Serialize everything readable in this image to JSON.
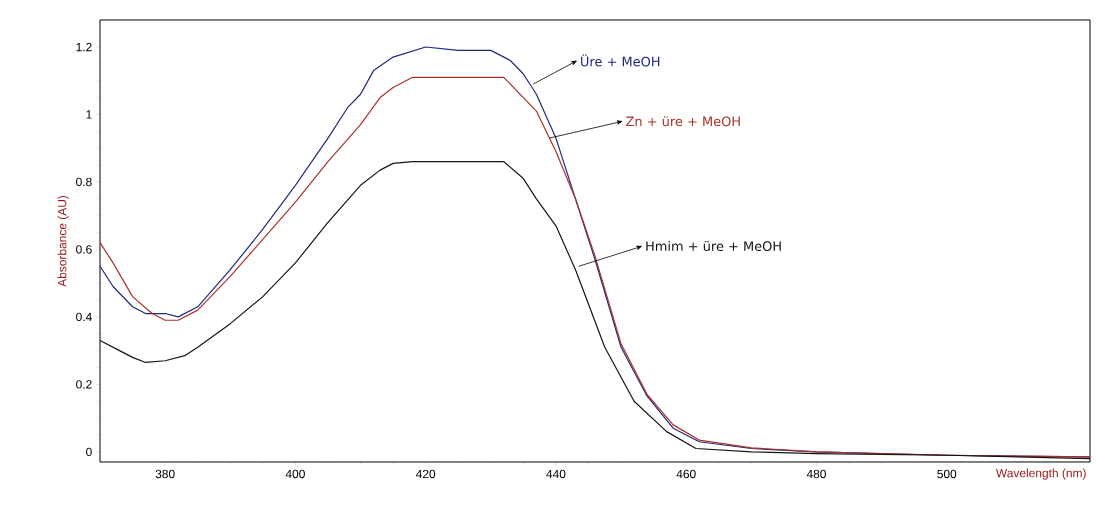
{
  "chart_data": {
    "type": "line",
    "xlabel": "Wavelength (nm)",
    "ylabel": "Absorbance (AU)",
    "xlim": [
      370,
      522
    ],
    "ylim": [
      -0.03,
      1.28
    ],
    "xticks": [
      380,
      400,
      420,
      440,
      460,
      480,
      500
    ],
    "yticks": [
      0,
      0.2,
      0.4,
      0.6,
      0.8,
      1,
      1.2
    ],
    "series": [
      {
        "name": "Üre + MeOH",
        "color": "#1f2a7a",
        "x": [
          370,
          372,
          375,
          377,
          380,
          382,
          385,
          390,
          395,
          400,
          405,
          408,
          410,
          412,
          415,
          420,
          425,
          430,
          433,
          435,
          437,
          440,
          443,
          446,
          450,
          454,
          458,
          462,
          470,
          480,
          500,
          522
        ],
        "values": [
          0.55,
          0.49,
          0.43,
          0.41,
          0.41,
          0.4,
          0.43,
          0.54,
          0.66,
          0.79,
          0.93,
          1.02,
          1.06,
          1.13,
          1.17,
          1.2,
          1.19,
          1.19,
          1.16,
          1.12,
          1.06,
          0.93,
          0.75,
          0.57,
          0.31,
          0.165,
          0.07,
          0.03,
          0.01,
          0.0,
          -0.01,
          -0.015
        ]
      },
      {
        "name": "Zn + üre + MeOH",
        "color": "#a8322a",
        "x": [
          370,
          372,
          375,
          378,
          380,
          382,
          385,
          390,
          395,
          400,
          405,
          410,
          413,
          415,
          418,
          425,
          432,
          435,
          437,
          440,
          443,
          446,
          450,
          454,
          458,
          462,
          470,
          480,
          500,
          522
        ],
        "values": [
          0.62,
          0.56,
          0.46,
          0.41,
          0.39,
          0.39,
          0.42,
          0.52,
          0.63,
          0.74,
          0.86,
          0.97,
          1.05,
          1.08,
          1.11,
          1.11,
          1.11,
          1.05,
          1.01,
          0.89,
          0.75,
          0.58,
          0.32,
          0.17,
          0.08,
          0.035,
          0.012,
          0.0,
          -0.01,
          -0.015
        ]
      },
      {
        "name": "Hmim + üre + MeOH",
        "color": "#151515",
        "x": [
          370,
          373,
          375,
          377,
          380,
          383,
          385,
          390,
          395,
          400,
          405,
          410,
          413,
          415,
          418,
          425,
          432,
          435,
          437,
          440,
          443,
          447.5,
          452,
          457,
          461.5,
          470,
          480,
          500,
          522
        ],
        "values": [
          0.33,
          0.3,
          0.28,
          0.265,
          0.27,
          0.285,
          0.31,
          0.38,
          0.46,
          0.56,
          0.68,
          0.79,
          0.835,
          0.855,
          0.86,
          0.86,
          0.86,
          0.81,
          0.75,
          0.67,
          0.54,
          0.31,
          0.15,
          0.06,
          0.01,
          0.0,
          -0.005,
          -0.01,
          -0.02
        ]
      }
    ]
  }
}
